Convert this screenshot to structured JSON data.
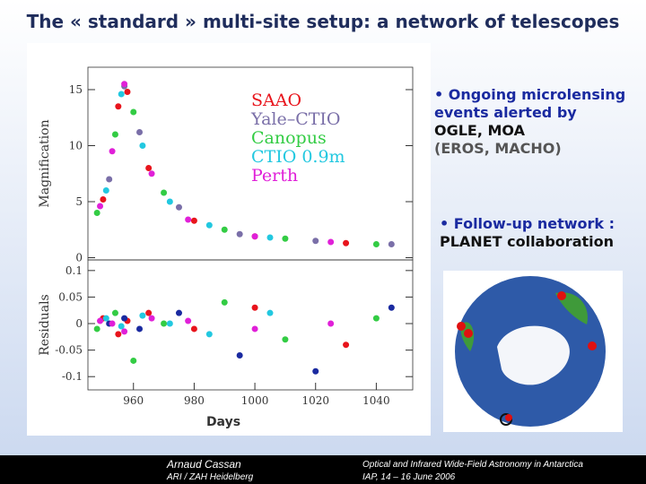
{
  "slide": {
    "title": "The « standard » multi-site setup: a network of telescopes",
    "bullet1": [
      "• Ongoing microlensing",
      "events alerted by",
      "OGLE, MOA",
      "(EROS, MACHO)"
    ],
    "bullet2": [
      "• Follow-up network :",
      "PLANET collaboration"
    ],
    "footer": {
      "author": "Arnaud Cassan",
      "affiliation": "ARI / ZAH Heidelberg",
      "conference": "Optical and Infrared Wide-Field Astronomy in Antarctica",
      "venue": "IAP,  14 – 16 June 2006"
    }
  },
  "chart_data": [
    {
      "type": "scatter",
      "y_label": "Magnification",
      "xlim": [
        945,
        1052
      ],
      "ylim": [
        -0.2,
        17
      ],
      "yticks": [
        0,
        5,
        10,
        15
      ],
      "series": [
        {
          "name": "SAAO",
          "color": "#e8141c",
          "x": [
            950,
            955,
            958,
            965,
            980,
            1000,
            1030
          ],
          "values": [
            5.2,
            13.5,
            14.8,
            8.0,
            3.3,
            1.9,
            1.3
          ]
        },
        {
          "name": "Yale–CTIO",
          "color": "#7a6fa8",
          "x": [
            952,
            957,
            962,
            975,
            995,
            1020,
            1045
          ],
          "values": [
            7.0,
            15.3,
            11.2,
            4.5,
            2.1,
            1.5,
            1.2
          ]
        },
        {
          "name": "Canopus",
          "color": "#33cc44",
          "x": [
            948,
            954,
            960,
            970,
            990,
            1010,
            1040
          ],
          "values": [
            4.0,
            11.0,
            13.0,
            5.8,
            2.5,
            1.7,
            1.2
          ]
        },
        {
          "name": "CTIO 0.9m",
          "color": "#22c8e0",
          "x": [
            951,
            956,
            963,
            972,
            985,
            1005
          ],
          "values": [
            6.0,
            14.6,
            10.0,
            5.0,
            2.9,
            1.8
          ]
        },
        {
          "name": "Perth",
          "color": "#e020d8",
          "x": [
            949,
            953,
            957,
            966,
            978,
            1000,
            1025
          ],
          "values": [
            4.6,
            9.5,
            15.5,
            7.5,
            3.4,
            1.9,
            1.4
          ]
        }
      ]
    },
    {
      "type": "scatter",
      "y_label": "Residuals",
      "x_label": "Days",
      "xlim": [
        945,
        1052
      ],
      "ylim": [
        -0.125,
        0.12
      ],
      "xticks": [
        960,
        980,
        1000,
        1020,
        1040
      ],
      "yticks": [
        0.1,
        0.05,
        0,
        -0.05,
        -0.1
      ],
      "series": [
        {
          "color": "#e8141c",
          "x": [
            950,
            955,
            958,
            965,
            980,
            1000,
            1030
          ],
          "values": [
            0.01,
            -0.02,
            0.005,
            0.02,
            -0.01,
            0.03,
            -0.04
          ]
        },
        {
          "color": "#1a2aa0",
          "x": [
            952,
            957,
            962,
            975,
            995,
            1020,
            1045
          ],
          "values": [
            0.0,
            0.01,
            -0.01,
            0.02,
            -0.06,
            -0.09,
            0.03
          ]
        },
        {
          "color": "#33cc44",
          "x": [
            948,
            954,
            960,
            970,
            990,
            1010,
            1040
          ],
          "values": [
            -0.01,
            0.02,
            -0.07,
            0.0,
            0.04,
            -0.03,
            0.01
          ]
        },
        {
          "color": "#22c8e0",
          "x": [
            951,
            956,
            963,
            972,
            985,
            1005
          ],
          "values": [
            0.01,
            -0.005,
            0.015,
            0.0,
            -0.02,
            0.02
          ]
        },
        {
          "color": "#e020d8",
          "x": [
            949,
            953,
            957,
            966,
            978,
            1000,
            1025
          ],
          "values": [
            0.005,
            0.0,
            -0.015,
            0.01,
            0.005,
            -0.01,
            0.0
          ]
        }
      ]
    }
  ]
}
